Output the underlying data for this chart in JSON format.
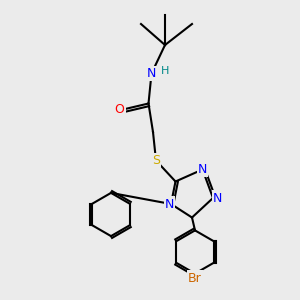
{
  "bg_color": "#ebebeb",
  "bond_color": "#000000",
  "atom_colors": {
    "N": "#0000ff",
    "O": "#ff0000",
    "S": "#ccaa00",
    "Br": "#cc6600",
    "H": "#008888",
    "C": "#000000"
  },
  "bond_width": 1.5,
  "font_size": 9,
  "font_size_small": 8
}
